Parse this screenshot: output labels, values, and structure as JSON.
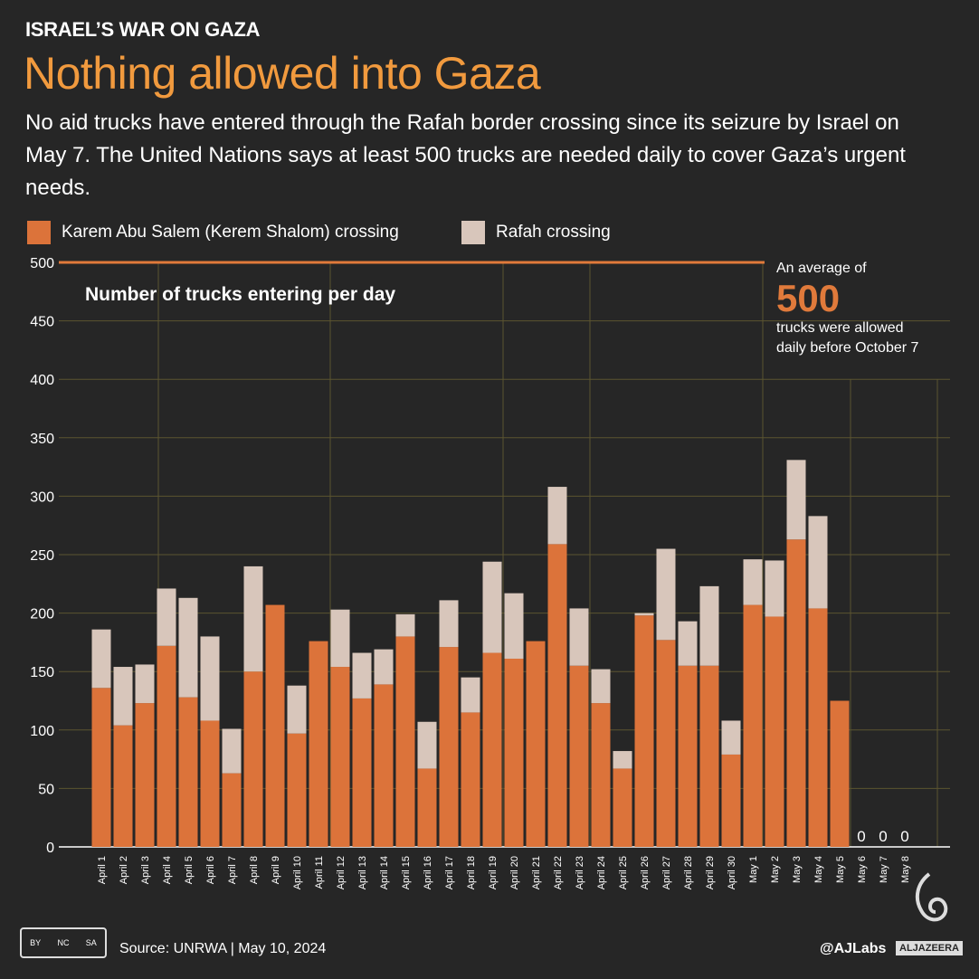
{
  "header": {
    "kicker": "ISRAEL’S WAR ON GAZA",
    "title": "Nothing allowed into Gaza",
    "subtitle": "No aid trucks have entered through the Rafah border crossing since its seizure by Israel on May 7. The United Nations says at least 500 trucks are needed daily to cover Gaza’s urgent needs."
  },
  "annotation": {
    "line1": "An average of",
    "value": "500",
    "line2": "trucks were allowed",
    "line3": "daily before October 7"
  },
  "footer": {
    "source": "Source:  UNRWA   |   May 10, 2024",
    "handle": "@AJLabs",
    "logo": "ALJAZEERA",
    "license": [
      "BY",
      "NC",
      "SA"
    ]
  },
  "colors": {
    "kerem": "#dc733a",
    "rafah": "#d8c6bb",
    "bg": "#262626",
    "accent": "#f19a3e"
  },
  "chart_data": {
    "type": "bar",
    "stacked": true,
    "title": "Number of trucks entering per day",
    "xlabel": "",
    "ylabel": "",
    "ylim": [
      0,
      500
    ],
    "yticks": [
      0,
      50,
      100,
      150,
      200,
      250,
      300,
      350,
      400,
      450,
      500
    ],
    "reference_line": 500,
    "categories": [
      "April 1",
      "April 2",
      "April 3",
      "April 4",
      "April 5",
      "April 6",
      "April 7",
      "April 8",
      "April 9",
      "April 10",
      "April 11",
      "April 12",
      "April 13",
      "April 14",
      "April 15",
      "April 16",
      "April 17",
      "April 18",
      "April 19",
      "April 20",
      "April 21",
      "April 22",
      "April 23",
      "April 24",
      "April 25",
      "April 26",
      "April 27",
      "April 28",
      "April 29",
      "April 30",
      "May 1",
      "May 2",
      "May 3",
      "May 4",
      "May 5",
      "May 6",
      "May 7",
      "May 8"
    ],
    "series": [
      {
        "name": "Karem Abu Salem (Kerem Shalom) crossing",
        "values": [
          136,
          104,
          123,
          172,
          128,
          108,
          63,
          150,
          207,
          97,
          176,
          154,
          127,
          139,
          180,
          67,
          171,
          115,
          166,
          161,
          176,
          259,
          155,
          123,
          67,
          198,
          177,
          155,
          155,
          79,
          207,
          197,
          263,
          204,
          125,
          0,
          0,
          0
        ]
      },
      {
        "name": "Rafah crossing",
        "values": [
          50,
          50,
          33,
          49,
          85,
          72,
          38,
          90,
          0,
          41,
          0,
          49,
          39,
          30,
          19,
          40,
          40,
          30,
          78,
          56,
          0,
          49,
          49,
          29,
          15,
          2,
          78,
          38,
          68,
          29,
          39,
          48,
          68,
          79,
          0,
          0,
          0,
          0
        ]
      }
    ],
    "zero_labels": [
      "0",
      "0",
      "0"
    ],
    "legend": "top-left"
  }
}
